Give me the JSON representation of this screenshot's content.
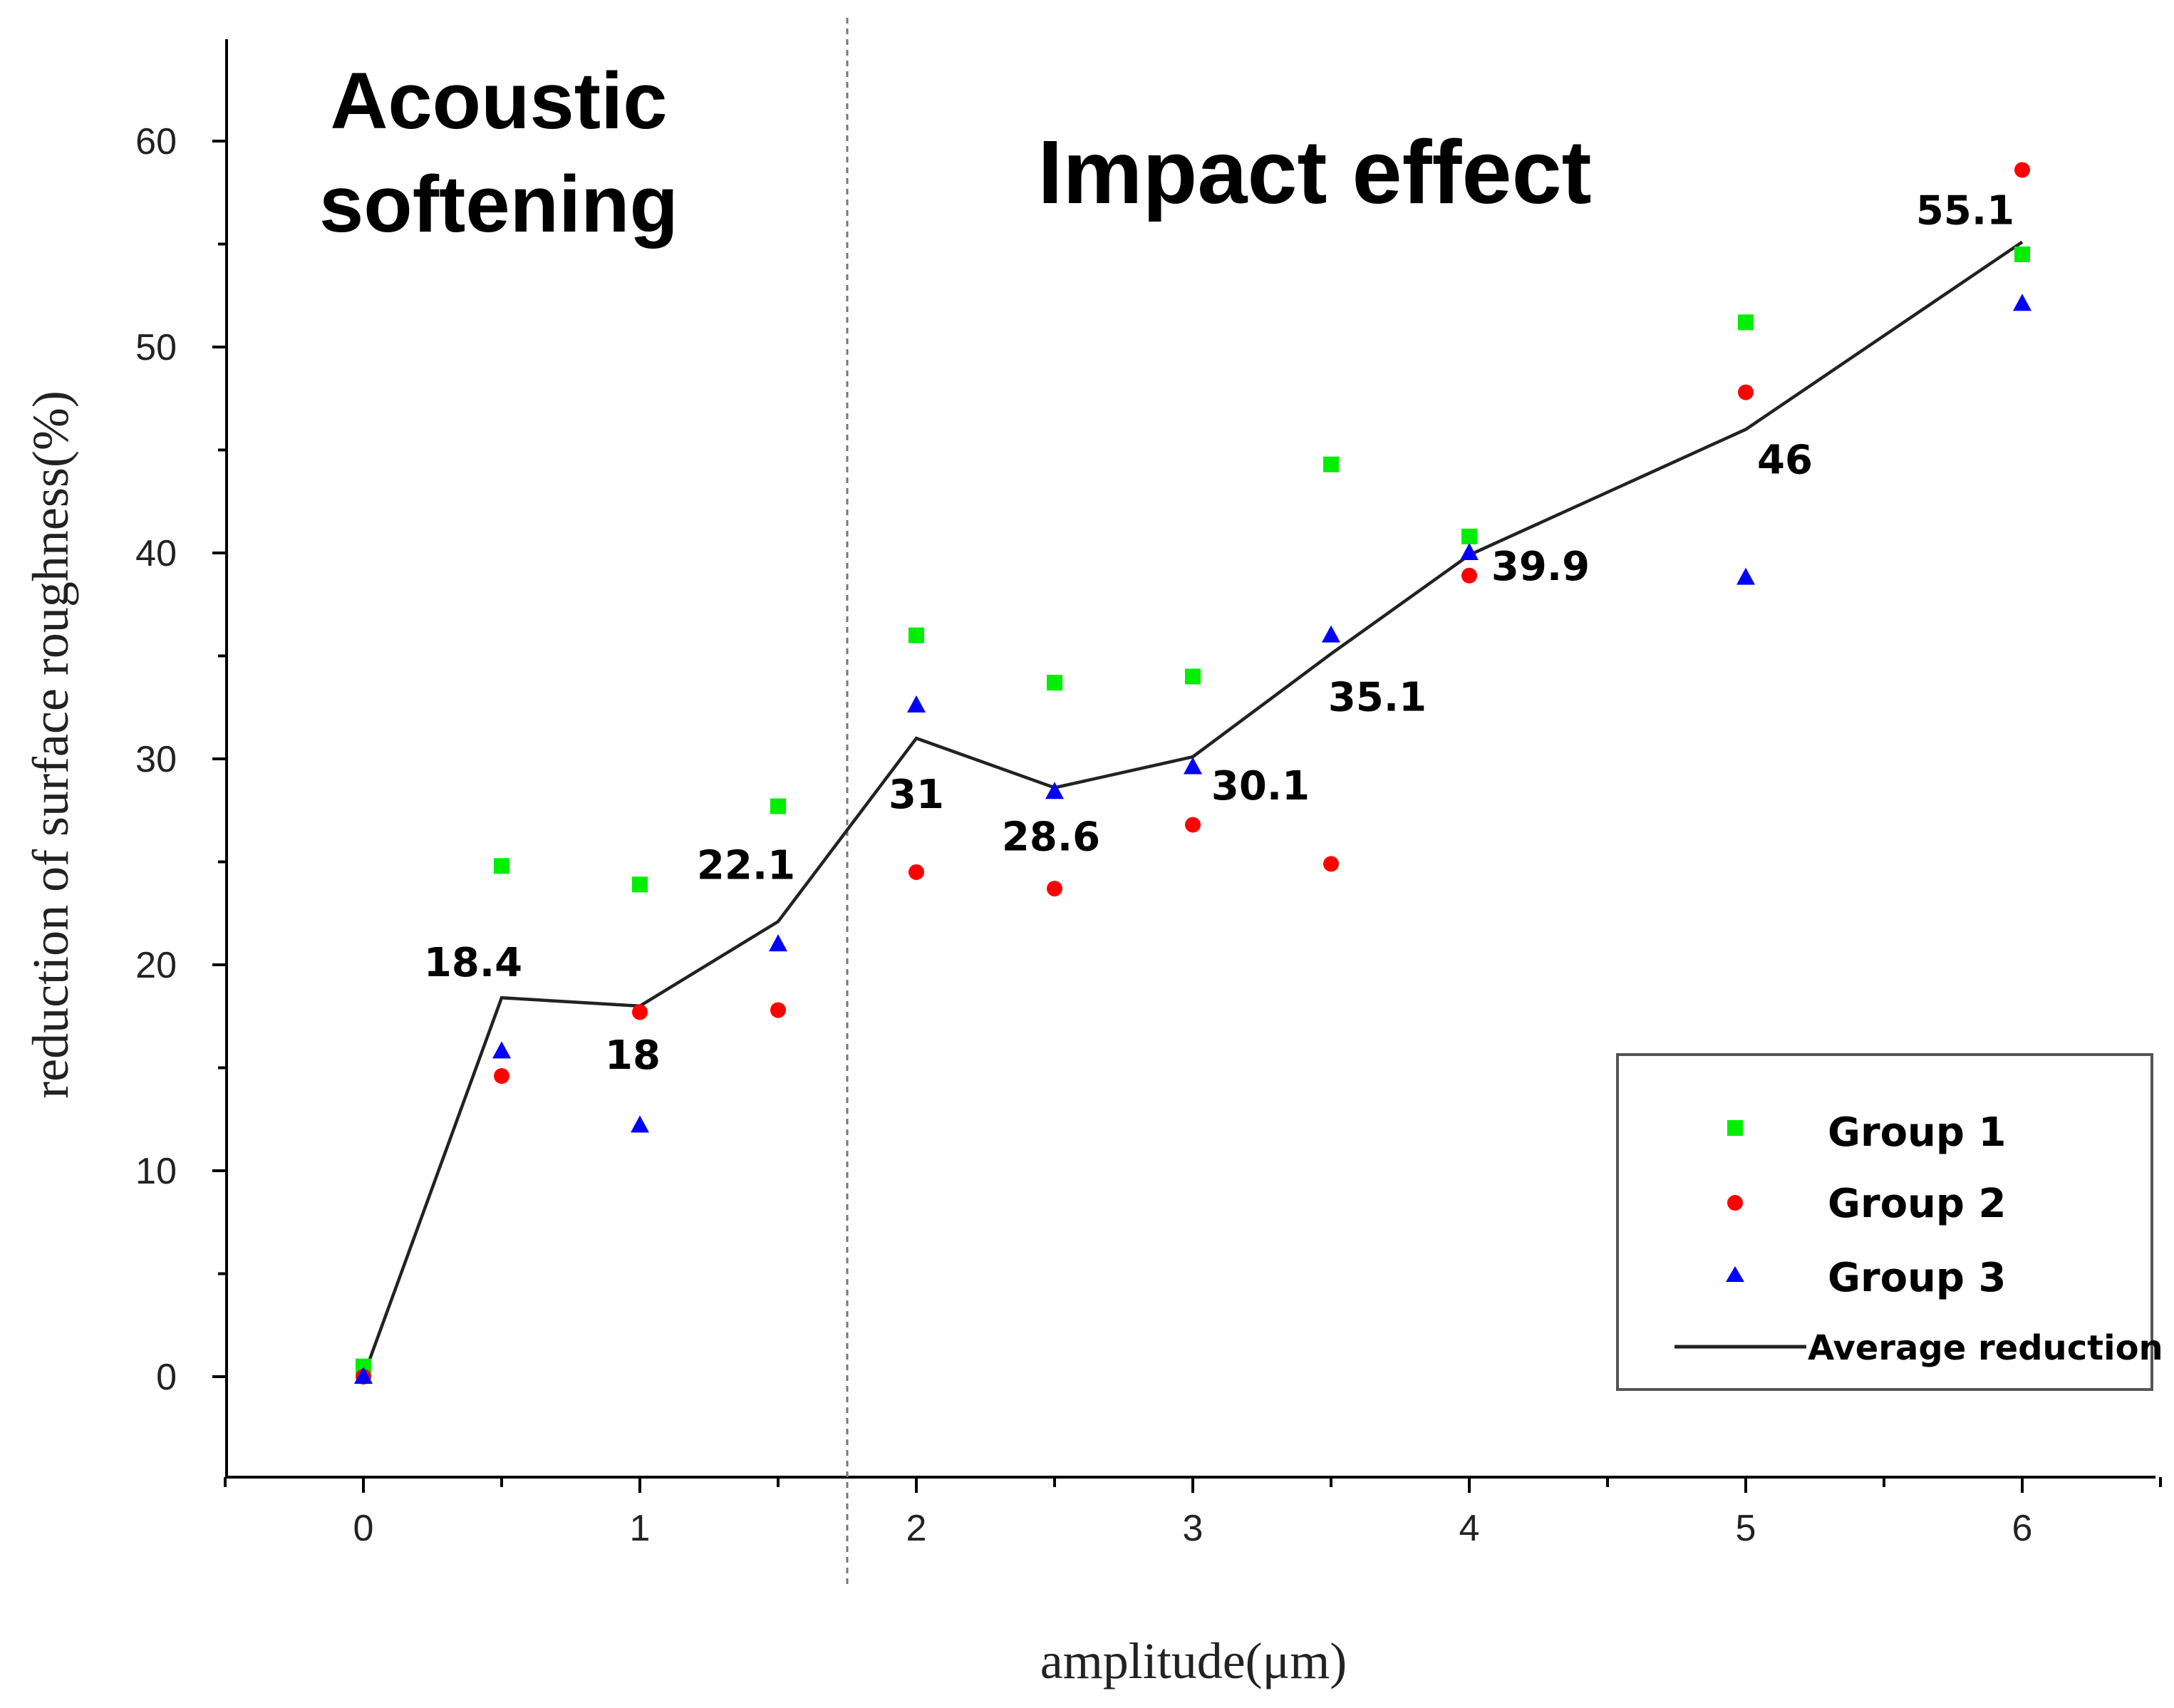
{
  "chart_data": {
    "type": "scatter",
    "title": "",
    "xlabel": "amplitude(μm)",
    "ylabel": "reduction of surface roughness(%)",
    "xlim": [
      -0.5,
      6.5
    ],
    "ylim": [
      -5,
      65
    ],
    "xticks": [
      0,
      1,
      2,
      3,
      4,
      5,
      6
    ],
    "xtick_labels": [
      "0",
      "1",
      "2",
      "3",
      "4",
      "5",
      "6"
    ],
    "yticks": [
      0,
      10,
      20,
      30,
      40,
      50,
      60
    ],
    "ytick_labels": [
      "0",
      "10",
      "20",
      "30",
      "40",
      "50",
      "60"
    ],
    "grid": false,
    "legend_position": "bottom-right",
    "regions": {
      "boundary_x": 1.75,
      "left_label_line1": "Acoustic",
      "left_label_line2": "softening",
      "right_label": "Impact effect"
    },
    "series": [
      {
        "name": "Group 1",
        "marker": "square",
        "color": "#00ee00",
        "x": [
          0,
          0.5,
          1,
          1.5,
          2,
          2.5,
          3,
          3.5,
          4,
          5,
          6
        ],
        "y": [
          0.5,
          24.8,
          23.9,
          27.7,
          36.0,
          33.7,
          34.0,
          44.3,
          40.8,
          51.2,
          54.5
        ]
      },
      {
        "name": "Group 2",
        "marker": "circle",
        "color": "#ff0000",
        "x": [
          0,
          0.5,
          1,
          1.5,
          2,
          2.5,
          3,
          3.5,
          4,
          5,
          6
        ],
        "y": [
          0,
          14.6,
          17.7,
          17.8,
          24.5,
          23.7,
          26.8,
          24.9,
          38.9,
          47.8,
          58.6
        ]
      },
      {
        "name": "Group 3",
        "marker": "triangle",
        "color": "#0000ff",
        "x": [
          0,
          0.5,
          1,
          1.5,
          2,
          2.5,
          3,
          3.5,
          4,
          5,
          6
        ],
        "y": [
          0,
          15.8,
          12.2,
          21.0,
          32.6,
          28.4,
          29.6,
          36.0,
          40.0,
          38.8,
          52.1
        ]
      },
      {
        "name": "Average reduction",
        "marker": "line",
        "color": "#222222",
        "x": [
          0,
          0.5,
          1,
          1.5,
          2,
          2.5,
          3,
          3.5,
          4,
          5,
          6
        ],
        "y": [
          0,
          18.4,
          18.0,
          22.1,
          31.0,
          28.6,
          30.1,
          35.1,
          39.9,
          46.0,
          55.1
        ],
        "labels": [
          "",
          "18.4",
          "18",
          "22.1",
          "31",
          "28.6",
          "30.1",
          "35.1",
          "39.9",
          "46",
          "55.1"
        ]
      }
    ]
  }
}
